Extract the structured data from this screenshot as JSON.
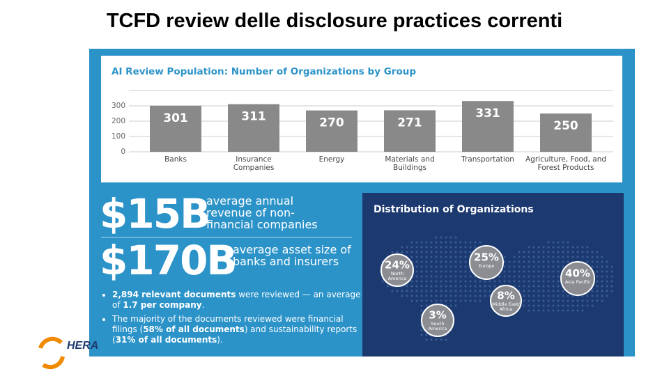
{
  "title": "TCFD review delle disclosure practices correnti",
  "chart_data": {
    "type": "bar",
    "title": "AI Review Population: Number of Organizations by Group",
    "categories": [
      "Banks",
      "Insurance Companies",
      "Energy",
      "Materials and Buildings",
      "Transportation",
      "Agriculture, Food, and Forest Products"
    ],
    "values": [
      301,
      311,
      270,
      271,
      331,
      250
    ],
    "color": "#898989",
    "ylim": [
      0,
      400
    ],
    "yticks": [
      0,
      100,
      200,
      300
    ],
    "grid": true
  },
  "stats": [
    {
      "figure": "$15B",
      "caption": "average annual revenue of non-financial companies"
    },
    {
      "figure": "$170B",
      "caption": "average asset size of banks and insurers"
    }
  ],
  "bullets": [
    [
      {
        "text": "2,894 relevant documents",
        "bold": true
      },
      {
        "text": " were reviewed — an average of ",
        "bold": false
      },
      {
        "text": "1.7 per company",
        "bold": true
      },
      {
        "text": ".",
        "bold": false
      }
    ],
    [
      {
        "text": "The majority of the documents reviewed were financial filings (",
        "bold": false
      },
      {
        "text": "58% of all documents",
        "bold": true
      },
      {
        "text": ") and sustainability reports (",
        "bold": false
      },
      {
        "text": "31% of all documents",
        "bold": true
      },
      {
        "text": ").",
        "bold": false
      }
    ]
  ],
  "map": {
    "title": "Distribution of Organizations",
    "regions": [
      {
        "share": "24%",
        "name": "North America"
      },
      {
        "share": "25%",
        "name": "Europe"
      },
      {
        "share": "8%",
        "name": "Middle East/ Africa"
      },
      {
        "share": "3%",
        "name": "South America"
      },
      {
        "share": "40%",
        "name": "Asia Pacific"
      }
    ]
  },
  "logo": "HERA"
}
